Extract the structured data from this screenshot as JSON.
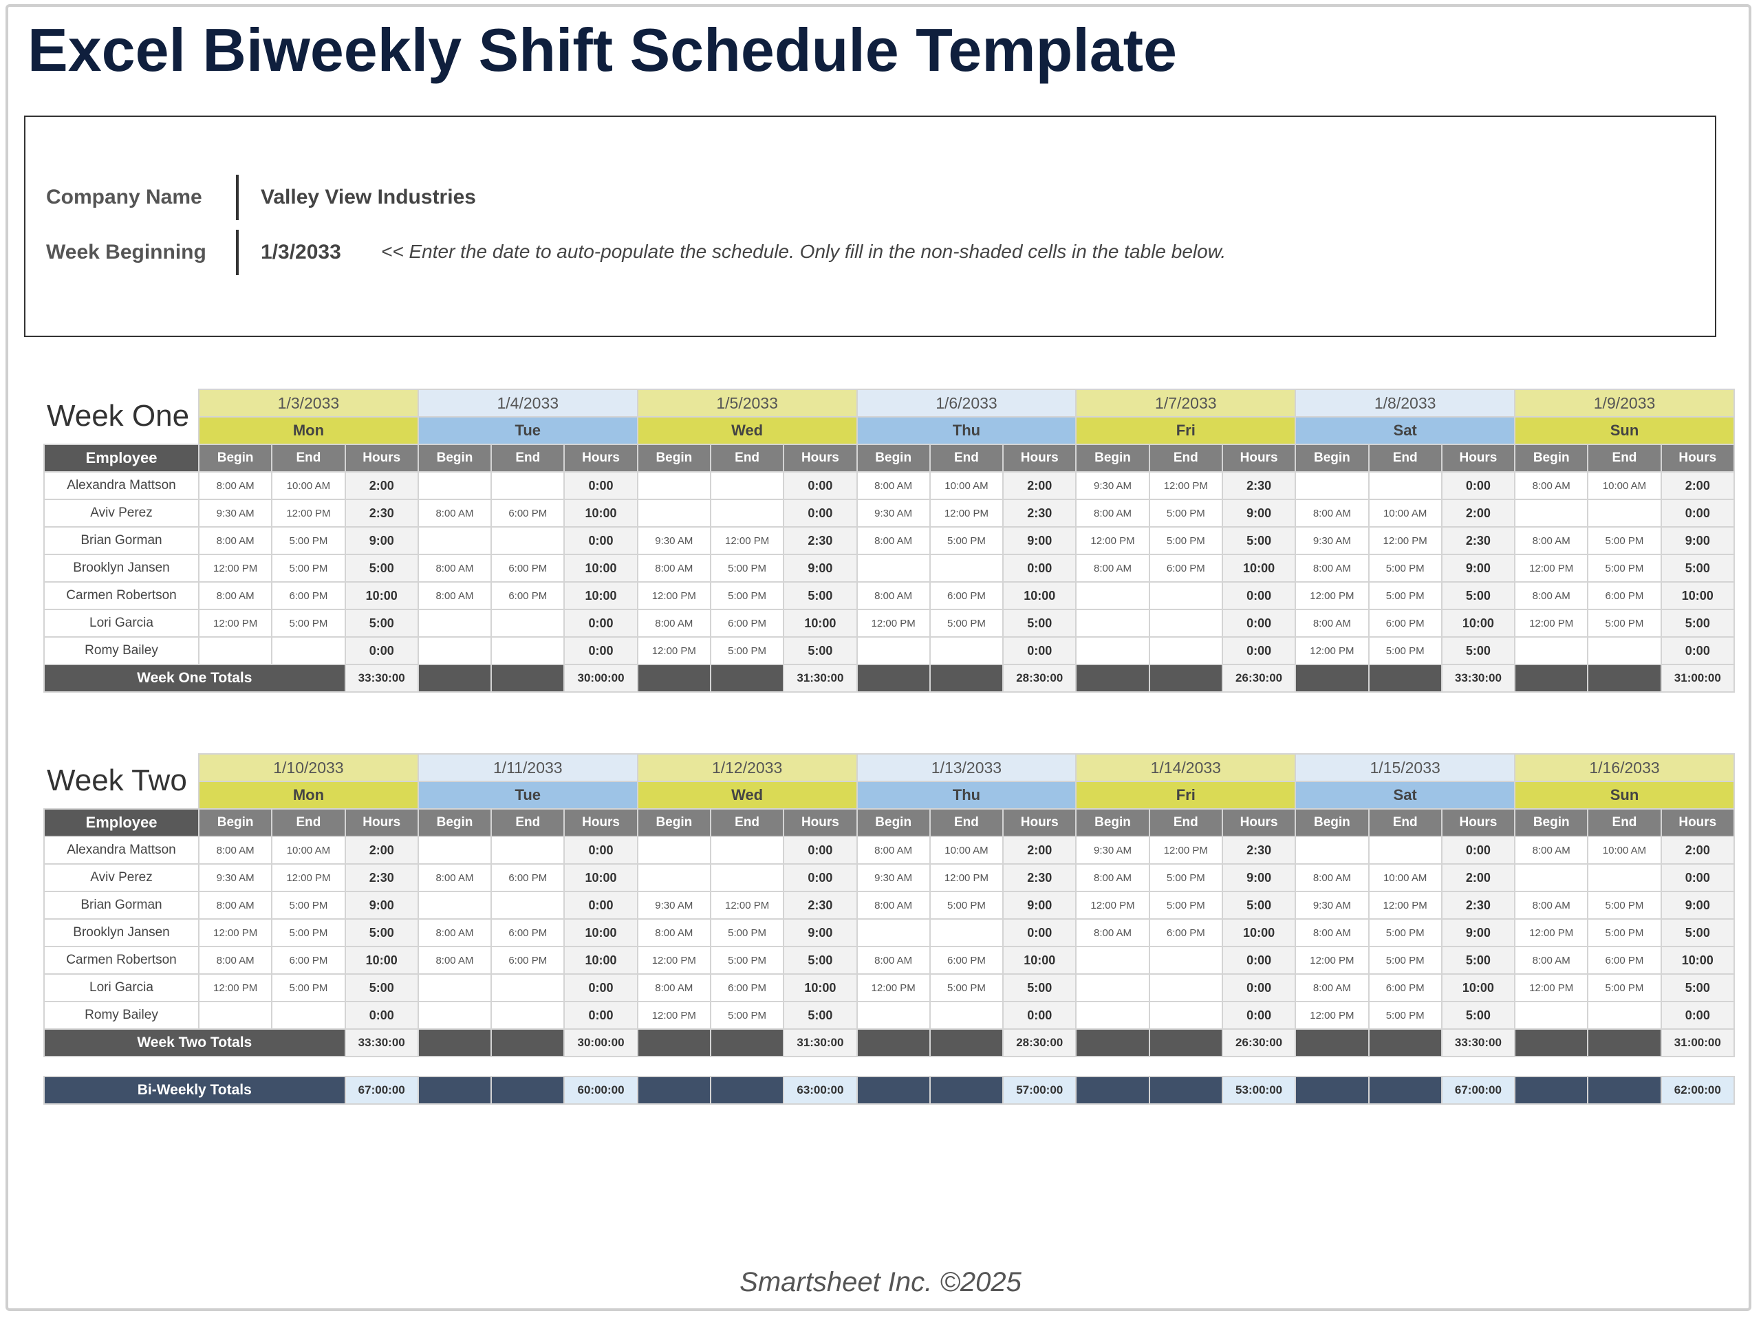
{
  "title": "Excel Biweekly Shift Schedule Template",
  "info": {
    "company_label": "Company Name",
    "company_value": "Valley View Industries",
    "week_label": "Week Beginning",
    "week_value": "1/3/2033",
    "note": "<< Enter the date to auto-populate the schedule. Only fill in the non-shaded cells in the table below."
  },
  "colors": {
    "title": "#0f1f3d",
    "yellow_light": "#e8e79a",
    "yellow": "#dada55",
    "blue_light": "#dfeaf5",
    "blue": "#9dc3e6",
    "header_gray": "#808080",
    "dark_gray": "#595959",
    "navy": "#3f5069"
  },
  "column_headers": {
    "employee": "Employee",
    "begin": "Begin",
    "end": "End",
    "hours": "Hours"
  },
  "weeks": [
    {
      "label": "Week One",
      "dates": [
        "1/3/2033",
        "1/4/2033",
        "1/5/2033",
        "1/6/2033",
        "1/7/2033",
        "1/8/2033",
        "1/9/2033"
      ],
      "days": [
        "Mon",
        "Tue",
        "Wed",
        "Thu",
        "Fri",
        "Sat",
        "Sun"
      ],
      "rows": [
        {
          "name": "Alexandra Mattson",
          "shifts": [
            [
              "8:00 AM",
              "10:00 AM",
              "2:00"
            ],
            [
              "",
              "",
              "0:00"
            ],
            [
              "",
              "",
              "0:00"
            ],
            [
              "8:00 AM",
              "10:00 AM",
              "2:00"
            ],
            [
              "9:30 AM",
              "12:00 PM",
              "2:30"
            ],
            [
              "",
              "",
              "0:00"
            ],
            [
              "8:00 AM",
              "10:00 AM",
              "2:00"
            ]
          ]
        },
        {
          "name": "Aviv Perez",
          "shifts": [
            [
              "9:30 AM",
              "12:00 PM",
              "2:30"
            ],
            [
              "8:00 AM",
              "6:00 PM",
              "10:00"
            ],
            [
              "",
              "",
              "0:00"
            ],
            [
              "9:30 AM",
              "12:00 PM",
              "2:30"
            ],
            [
              "8:00 AM",
              "5:00 PM",
              "9:00"
            ],
            [
              "8:00 AM",
              "10:00 AM",
              "2:00"
            ],
            [
              "",
              "",
              "0:00"
            ]
          ]
        },
        {
          "name": "Brian Gorman",
          "shifts": [
            [
              "8:00 AM",
              "5:00 PM",
              "9:00"
            ],
            [
              "",
              "",
              "0:00"
            ],
            [
              "9:30 AM",
              "12:00 PM",
              "2:30"
            ],
            [
              "8:00 AM",
              "5:00 PM",
              "9:00"
            ],
            [
              "12:00 PM",
              "5:00 PM",
              "5:00"
            ],
            [
              "9:30 AM",
              "12:00 PM",
              "2:30"
            ],
            [
              "8:00 AM",
              "5:00 PM",
              "9:00"
            ]
          ]
        },
        {
          "name": "Brooklyn Jansen",
          "shifts": [
            [
              "12:00 PM",
              "5:00 PM",
              "5:00"
            ],
            [
              "8:00 AM",
              "6:00 PM",
              "10:00"
            ],
            [
              "8:00 AM",
              "5:00 PM",
              "9:00"
            ],
            [
              "",
              "",
              "0:00"
            ],
            [
              "8:00 AM",
              "6:00 PM",
              "10:00"
            ],
            [
              "8:00 AM",
              "5:00 PM",
              "9:00"
            ],
            [
              "12:00 PM",
              "5:00 PM",
              "5:00"
            ]
          ]
        },
        {
          "name": "Carmen Robertson",
          "shifts": [
            [
              "8:00 AM",
              "6:00 PM",
              "10:00"
            ],
            [
              "8:00 AM",
              "6:00 PM",
              "10:00"
            ],
            [
              "12:00 PM",
              "5:00 PM",
              "5:00"
            ],
            [
              "8:00 AM",
              "6:00 PM",
              "10:00"
            ],
            [
              "",
              "",
              "0:00"
            ],
            [
              "12:00 PM",
              "5:00 PM",
              "5:00"
            ],
            [
              "8:00 AM",
              "6:00 PM",
              "10:00"
            ]
          ]
        },
        {
          "name": "Lori Garcia",
          "shifts": [
            [
              "12:00 PM",
              "5:00 PM",
              "5:00"
            ],
            [
              "",
              "",
              "0:00"
            ],
            [
              "8:00 AM",
              "6:00 PM",
              "10:00"
            ],
            [
              "12:00 PM",
              "5:00 PM",
              "5:00"
            ],
            [
              "",
              "",
              "0:00"
            ],
            [
              "8:00 AM",
              "6:00 PM",
              "10:00"
            ],
            [
              "12:00 PM",
              "5:00 PM",
              "5:00"
            ]
          ]
        },
        {
          "name": "Romy Bailey",
          "shifts": [
            [
              "",
              "",
              "0:00"
            ],
            [
              "",
              "",
              "0:00"
            ],
            [
              "12:00 PM",
              "5:00 PM",
              "5:00"
            ],
            [
              "",
              "",
              "0:00"
            ],
            [
              "",
              "",
              "0:00"
            ],
            [
              "12:00 PM",
              "5:00 PM",
              "5:00"
            ],
            [
              "",
              "",
              "0:00"
            ]
          ]
        }
      ],
      "totals_label": "Week One Totals",
      "totals": [
        "33:30:00",
        "30:00:00",
        "31:30:00",
        "28:30:00",
        "26:30:00",
        "33:30:00",
        "31:00:00"
      ]
    },
    {
      "label": "Week Two",
      "dates": [
        "1/10/2033",
        "1/11/2033",
        "1/12/2033",
        "1/13/2033",
        "1/14/2033",
        "1/15/2033",
        "1/16/2033"
      ],
      "days": [
        "Mon",
        "Tue",
        "Wed",
        "Thu",
        "Fri",
        "Sat",
        "Sun"
      ],
      "rows": [
        {
          "name": "Alexandra Mattson",
          "shifts": [
            [
              "8:00 AM",
              "10:00 AM",
              "2:00"
            ],
            [
              "",
              "",
              "0:00"
            ],
            [
              "",
              "",
              "0:00"
            ],
            [
              "8:00 AM",
              "10:00 AM",
              "2:00"
            ],
            [
              "9:30 AM",
              "12:00 PM",
              "2:30"
            ],
            [
              "",
              "",
              "0:00"
            ],
            [
              "8:00 AM",
              "10:00 AM",
              "2:00"
            ]
          ]
        },
        {
          "name": "Aviv Perez",
          "shifts": [
            [
              "9:30 AM",
              "12:00 PM",
              "2:30"
            ],
            [
              "8:00 AM",
              "6:00 PM",
              "10:00"
            ],
            [
              "",
              "",
              "0:00"
            ],
            [
              "9:30 AM",
              "12:00 PM",
              "2:30"
            ],
            [
              "8:00 AM",
              "5:00 PM",
              "9:00"
            ],
            [
              "8:00 AM",
              "10:00 AM",
              "2:00"
            ],
            [
              "",
              "",
              "0:00"
            ]
          ]
        },
        {
          "name": "Brian Gorman",
          "shifts": [
            [
              "8:00 AM",
              "5:00 PM",
              "9:00"
            ],
            [
              "",
              "",
              "0:00"
            ],
            [
              "9:30 AM",
              "12:00 PM",
              "2:30"
            ],
            [
              "8:00 AM",
              "5:00 PM",
              "9:00"
            ],
            [
              "12:00 PM",
              "5:00 PM",
              "5:00"
            ],
            [
              "9:30 AM",
              "12:00 PM",
              "2:30"
            ],
            [
              "8:00 AM",
              "5:00 PM",
              "9:00"
            ]
          ]
        },
        {
          "name": "Brooklyn Jansen",
          "shifts": [
            [
              "12:00 PM",
              "5:00 PM",
              "5:00"
            ],
            [
              "8:00 AM",
              "6:00 PM",
              "10:00"
            ],
            [
              "8:00 AM",
              "5:00 PM",
              "9:00"
            ],
            [
              "",
              "",
              "0:00"
            ],
            [
              "8:00 AM",
              "6:00 PM",
              "10:00"
            ],
            [
              "8:00 AM",
              "5:00 PM",
              "9:00"
            ],
            [
              "12:00 PM",
              "5:00 PM",
              "5:00"
            ]
          ]
        },
        {
          "name": "Carmen Robertson",
          "shifts": [
            [
              "8:00 AM",
              "6:00 PM",
              "10:00"
            ],
            [
              "8:00 AM",
              "6:00 PM",
              "10:00"
            ],
            [
              "12:00 PM",
              "5:00 PM",
              "5:00"
            ],
            [
              "8:00 AM",
              "6:00 PM",
              "10:00"
            ],
            [
              "",
              "",
              "0:00"
            ],
            [
              "12:00 PM",
              "5:00 PM",
              "5:00"
            ],
            [
              "8:00 AM",
              "6:00 PM",
              "10:00"
            ]
          ]
        },
        {
          "name": "Lori Garcia",
          "shifts": [
            [
              "12:00 PM",
              "5:00 PM",
              "5:00"
            ],
            [
              "",
              "",
              "0:00"
            ],
            [
              "8:00 AM",
              "6:00 PM",
              "10:00"
            ],
            [
              "12:00 PM",
              "5:00 PM",
              "5:00"
            ],
            [
              "",
              "",
              "0:00"
            ],
            [
              "8:00 AM",
              "6:00 PM",
              "10:00"
            ],
            [
              "12:00 PM",
              "5:00 PM",
              "5:00"
            ]
          ]
        },
        {
          "name": "Romy Bailey",
          "shifts": [
            [
              "",
              "",
              "0:00"
            ],
            [
              "",
              "",
              "0:00"
            ],
            [
              "12:00 PM",
              "5:00 PM",
              "5:00"
            ],
            [
              "",
              "",
              "0:00"
            ],
            [
              "",
              "",
              "0:00"
            ],
            [
              "12:00 PM",
              "5:00 PM",
              "5:00"
            ],
            [
              "",
              "",
              "0:00"
            ]
          ]
        }
      ],
      "totals_label": "Week Two Totals",
      "totals": [
        "33:30:00",
        "30:00:00",
        "31:30:00",
        "28:30:00",
        "26:30:00",
        "33:30:00",
        "31:00:00"
      ]
    }
  ],
  "biweekly": {
    "label": "Bi-Weekly Totals",
    "totals": [
      "67:00:00",
      "60:00:00",
      "63:00:00",
      "57:00:00",
      "53:00:00",
      "67:00:00",
      "62:00:00"
    ]
  },
  "footer": "Smartsheet Inc. ©2025"
}
